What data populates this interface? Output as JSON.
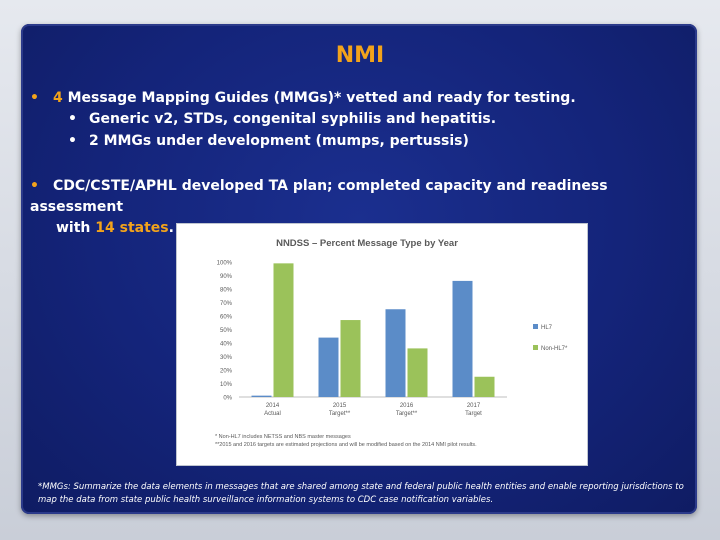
{
  "slide": {
    "title": "NMI",
    "bullet1": {
      "number": "4",
      "text": "Message Mapping Guides (MMGs)* vetted and ready for testing.",
      "subitems": [
        "Generic v2, STDs, congenital syphilis and hepatitis.",
        "2 MMGs under development (mumps,  pertussis)"
      ]
    },
    "bullet2": {
      "text_line1": "CDC/CSTE/APHL developed TA plan; completed capacity and readiness assessment",
      "text_line2_prefix": "with ",
      "highlight": "14 states",
      "text_line2_suffix": "."
    },
    "footnote": "*MMGs:  Summarize the data elements in messages that are shared among state and federal public health entities and enable reporting jurisdictions to map the data from  state public health surveillance information systems to CDC case notification variables."
  },
  "chart_data": {
    "type": "bar",
    "title": "NNDSS – Percent Message Type by Year",
    "categories": [
      "2014 Actual",
      "2015 Target**",
      "2016 Target**",
      "2017 Target"
    ],
    "category_lines": [
      [
        "2014",
        "Actual"
      ],
      [
        "2015",
        "Target**"
      ],
      [
        "2016",
        "Target**"
      ],
      [
        "2017",
        "Target"
      ]
    ],
    "series": [
      {
        "name": "HL7",
        "values": [
          1,
          44,
          65,
          86
        ],
        "color": "#5b8cc8"
      },
      {
        "name": "Non-HL7*",
        "values": [
          99,
          57,
          36,
          15
        ],
        "color": "#9bc25a"
      }
    ],
    "ylim": [
      0,
      100
    ],
    "yticks": [
      "0%",
      "10%",
      "20%",
      "30%",
      "40%",
      "50%",
      "60%",
      "70%",
      "80%",
      "90%",
      "100%"
    ],
    "legend_position": "right",
    "notes": [
      "* Non-HL7 includes NETSS and NBS master messages",
      "**2015 and 2016 targets are estimated projections and will be modified based on the 2014 NMI pilot results."
    ]
  }
}
